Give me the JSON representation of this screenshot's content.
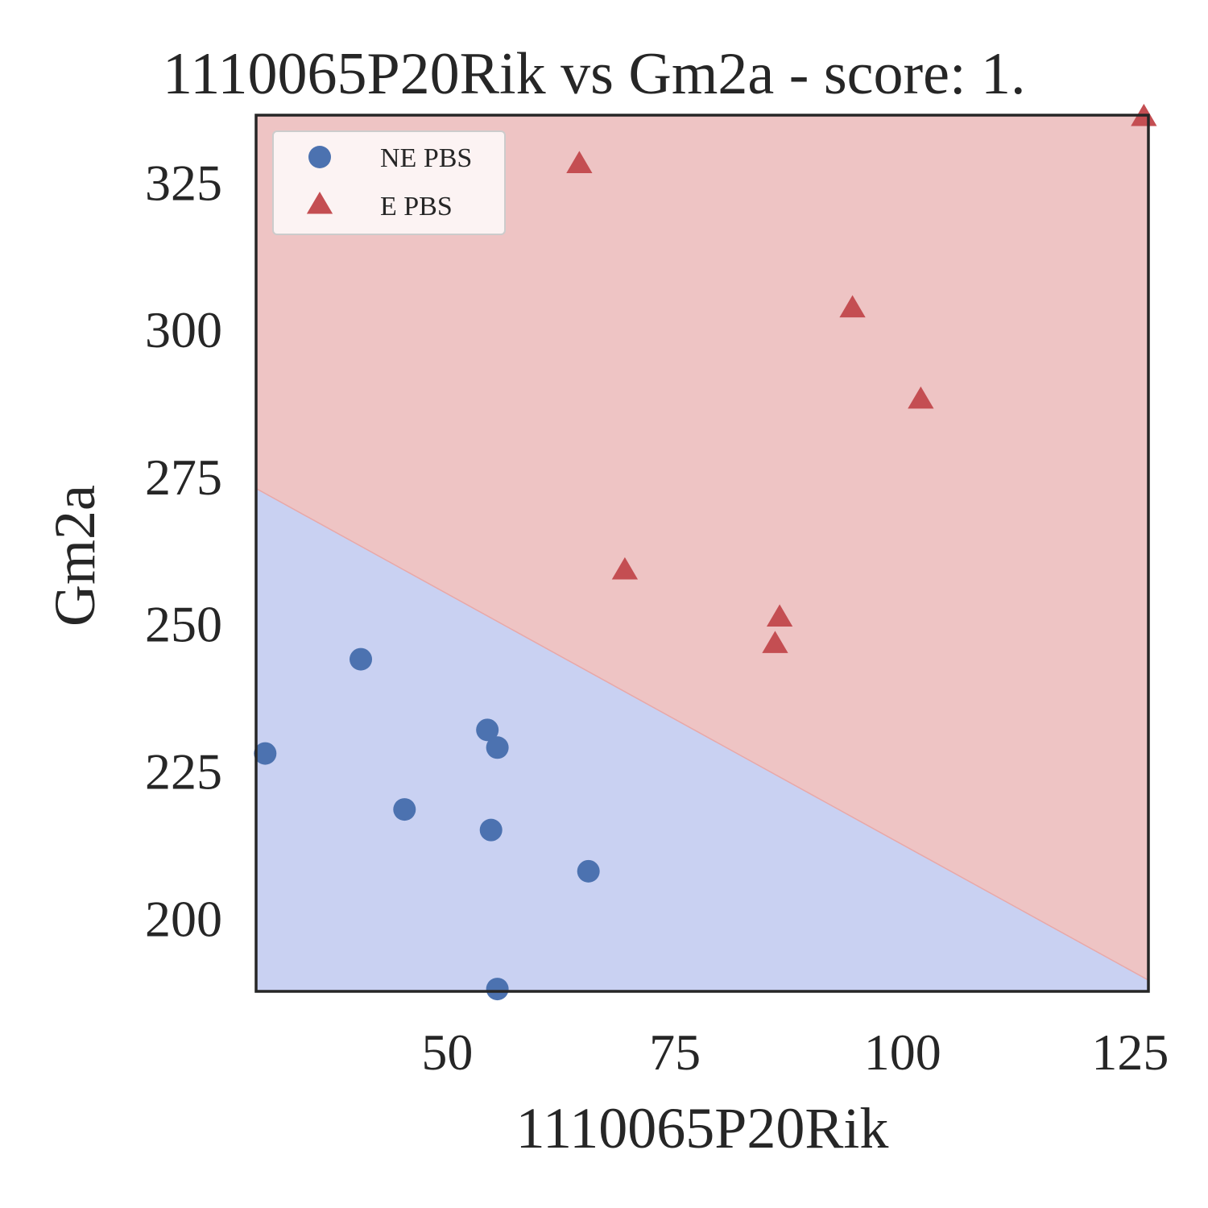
{
  "chart_data": {
    "type": "scatter",
    "title": "1110065P20Rik vs Gm2a - score: 1.",
    "xlabel": "1110065P20Rik",
    "ylabel": "Gm2a",
    "xlim": [
      29,
      127
    ],
    "ylim": [
      187.6,
      336.4
    ],
    "xticks": [
      50,
      75,
      100,
      125
    ],
    "yticks": [
      200,
      225,
      250,
      275,
      300,
      325
    ],
    "grid": false,
    "legend_position": "top-left",
    "decision_boundary": {
      "points": [
        [
          29,
          273.0
        ],
        [
          127,
          189.5
        ]
      ],
      "region_colors": {
        "upper": "#eec4c4",
        "lower": "#c9d1f2"
      },
      "boundary_color": "#e8a8a8"
    },
    "series": [
      {
        "name": "NE PBS",
        "marker": "circle",
        "color": "#4c72b0",
        "points": [
          [
            30,
            228
          ],
          [
            40.5,
            244
          ],
          [
            45.3,
            218.5
          ],
          [
            54.4,
            232
          ],
          [
            55.5,
            229
          ],
          [
            54.8,
            215
          ],
          [
            65.5,
            208
          ],
          [
            55.5,
            188
          ]
        ]
      },
      {
        "name": "E PBS",
        "marker": "triangle",
        "color": "#c44e52",
        "points": [
          [
            64.5,
            328
          ],
          [
            69.5,
            259
          ],
          [
            86.5,
            251
          ],
          [
            86,
            246.5
          ],
          [
            94.5,
            303.5
          ],
          [
            102,
            288
          ],
          [
            126.5,
            336
          ]
        ]
      }
    ]
  }
}
